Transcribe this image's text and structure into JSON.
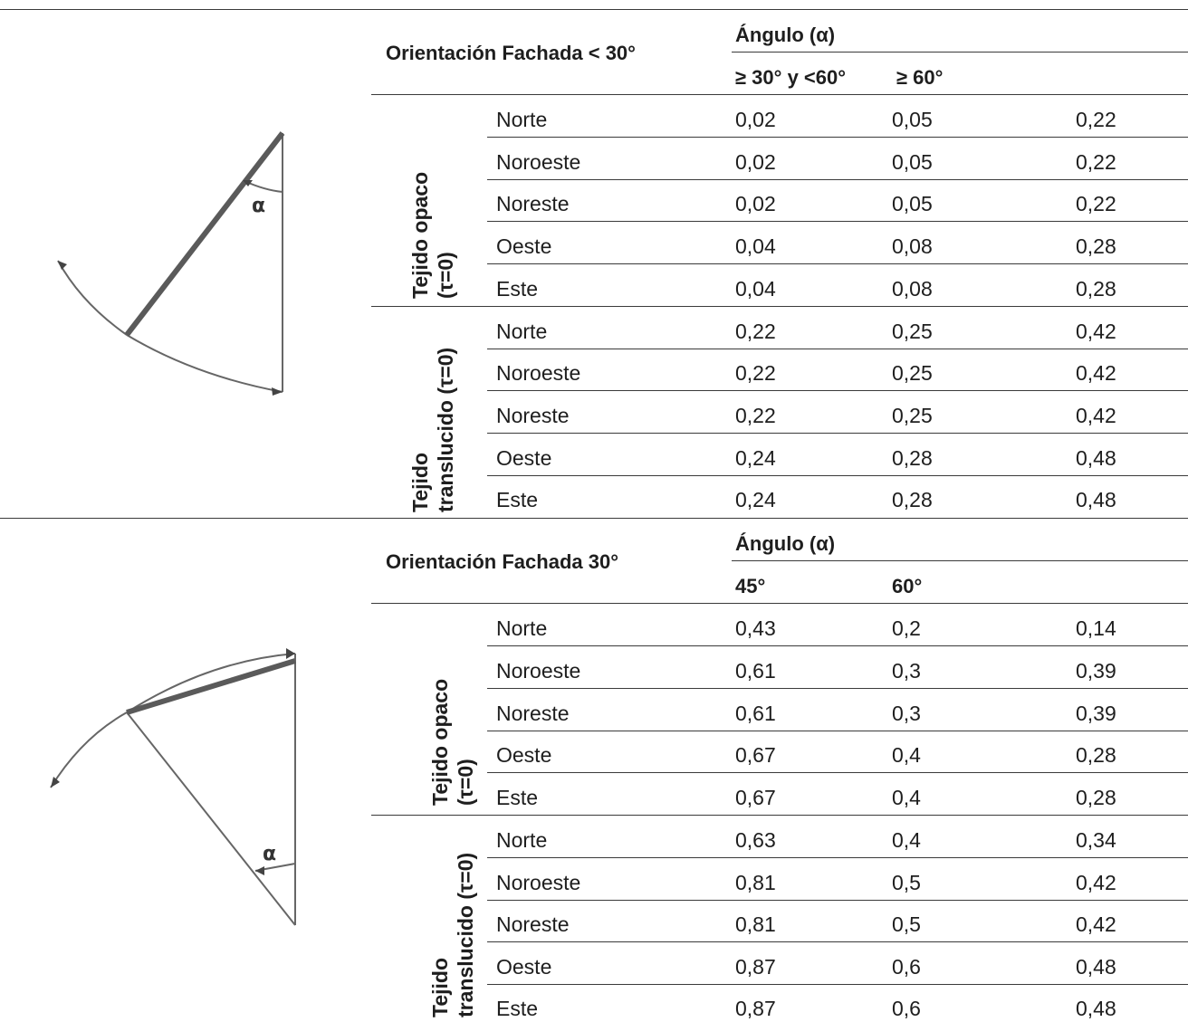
{
  "sections": [
    {
      "title": "Orientación Fachada < 30°",
      "angle_header": "Ángulo (α)",
      "sub_headers": [
        "≥ 30° y <60°",
        "≥ 60°"
      ],
      "groups": [
        {
          "label_lines": [
            "Tejido opaco",
            "(τ=0)"
          ],
          "rows": [
            {
              "orientation": "Norte",
              "values": [
                "0,02",
                "0,05",
                "0,22"
              ]
            },
            {
              "orientation": "Noroeste",
              "values": [
                "0,02",
                "0,05",
                "0,22"
              ]
            },
            {
              "orientation": "Noreste",
              "values": [
                "0,02",
                "0,05",
                "0,22"
              ]
            },
            {
              "orientation": "Oeste",
              "values": [
                "0,04",
                "0,08",
                "0,28"
              ]
            },
            {
              "orientation": "Este",
              "values": [
                "0,04",
                "0,08",
                "0,28"
              ]
            }
          ]
        },
        {
          "label_lines": [
            "Tejido",
            "translucido (τ=0)"
          ],
          "rows": [
            {
              "orientation": "Norte",
              "values": [
                "0,22",
                "0,25",
                "0,42"
              ]
            },
            {
              "orientation": "Noroeste",
              "values": [
                "0,22",
                "0,25",
                "0,42"
              ]
            },
            {
              "orientation": "Noreste",
              "values": [
                "0,22",
                "0,25",
                "0,42"
              ]
            },
            {
              "orientation": "Oeste",
              "values": [
                "0,24",
                "0,28",
                "0,48"
              ]
            },
            {
              "orientation": "Este",
              "values": [
                "0,24",
                "0,28",
                "0,48"
              ]
            }
          ]
        }
      ],
      "diagram_label": "α"
    },
    {
      "title": "Orientación Fachada 30°",
      "angle_header": "Ángulo (α)",
      "sub_headers": [
        "45°",
        "60°"
      ],
      "groups": [
        {
          "label_lines": [
            "Tejido opaco",
            "(τ=0)"
          ],
          "rows": [
            {
              "orientation": "Norte",
              "values": [
                "0,43",
                "0,2",
                "0,14"
              ]
            },
            {
              "orientation": "Noroeste",
              "values": [
                "0,61",
                "0,3",
                "0,39"
              ]
            },
            {
              "orientation": "Noreste",
              "values": [
                "0,61",
                "0,3",
                "0,39"
              ]
            },
            {
              "orientation": "Oeste",
              "values": [
                "0,67",
                "0,4",
                "0,28"
              ]
            },
            {
              "orientation": "Este",
              "values": [
                "0,67",
                "0,4",
                "0,28"
              ]
            }
          ]
        },
        {
          "label_lines": [
            "Tejido",
            "translucido (τ=0)"
          ],
          "rows": [
            {
              "orientation": "Norte",
              "values": [
                "0,63",
                "0,4",
                "0,34"
              ]
            },
            {
              "orientation": "Noroeste",
              "values": [
                "0,81",
                "0,5",
                "0,42"
              ]
            },
            {
              "orientation": "Noreste",
              "values": [
                "0,81",
                "0,5",
                "0,42"
              ]
            },
            {
              "orientation": "Oeste",
              "values": [
                "0,87",
                "0,6",
                "0,48"
              ]
            },
            {
              "orientation": "Este",
              "values": [
                "0,87",
                "0,6",
                "0,48"
              ]
            }
          ]
        }
      ],
      "diagram_label": "α"
    }
  ]
}
